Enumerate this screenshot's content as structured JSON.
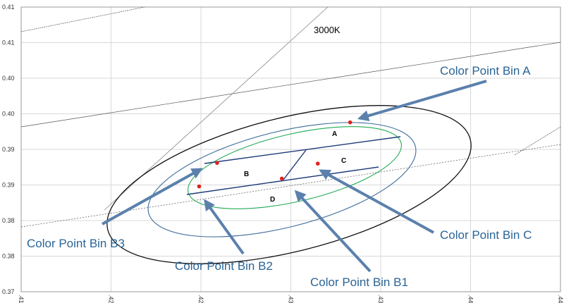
{
  "chart_data": {
    "type": "scatter",
    "x": [
      0.4283,
      0.4209,
      0.4199,
      0.4245,
      0.4265
    ],
    "y": [
      0.3938,
      0.3881,
      0.3848,
      0.3859,
      0.388
    ],
    "color": "#e0201b",
    "xlim": [
      0.41,
      0.44
    ],
    "ylim": [
      0.37,
      0.41
    ],
    "xticks": [
      {
        "value": 0.41,
        "label": ".41"
      },
      {
        "value": 0.415,
        "label": ".42"
      },
      {
        "value": 0.42,
        "label": ".42"
      },
      {
        "value": 0.425,
        "label": ".43"
      },
      {
        "value": 0.43,
        "label": ".43"
      },
      {
        "value": 0.435,
        "label": ".44"
      },
      {
        "value": 0.44,
        "label": ".44"
      }
    ],
    "yticks": [
      0.37,
      {
        "value": 0.375,
        "label": "0.38"
      },
      0.38,
      {
        "value": 0.385,
        "label": "0.39"
      },
      0.39,
      {
        "value": 0.395,
        "label": "0.40"
      },
      {
        "value": 0.4,
        "label": "0.40"
      },
      {
        "value": 0.405,
        "label": "0.41"
      },
      0.41
    ],
    "grid": true,
    "annotations": [
      "3000K",
      "A",
      "B",
      "C",
      "D",
      "Color Point Bin A",
      "Color Point Bin C",
      "Color Point Bin B3",
      "Color Point Bin B2",
      "Color Point Bin B1"
    ]
  }
}
